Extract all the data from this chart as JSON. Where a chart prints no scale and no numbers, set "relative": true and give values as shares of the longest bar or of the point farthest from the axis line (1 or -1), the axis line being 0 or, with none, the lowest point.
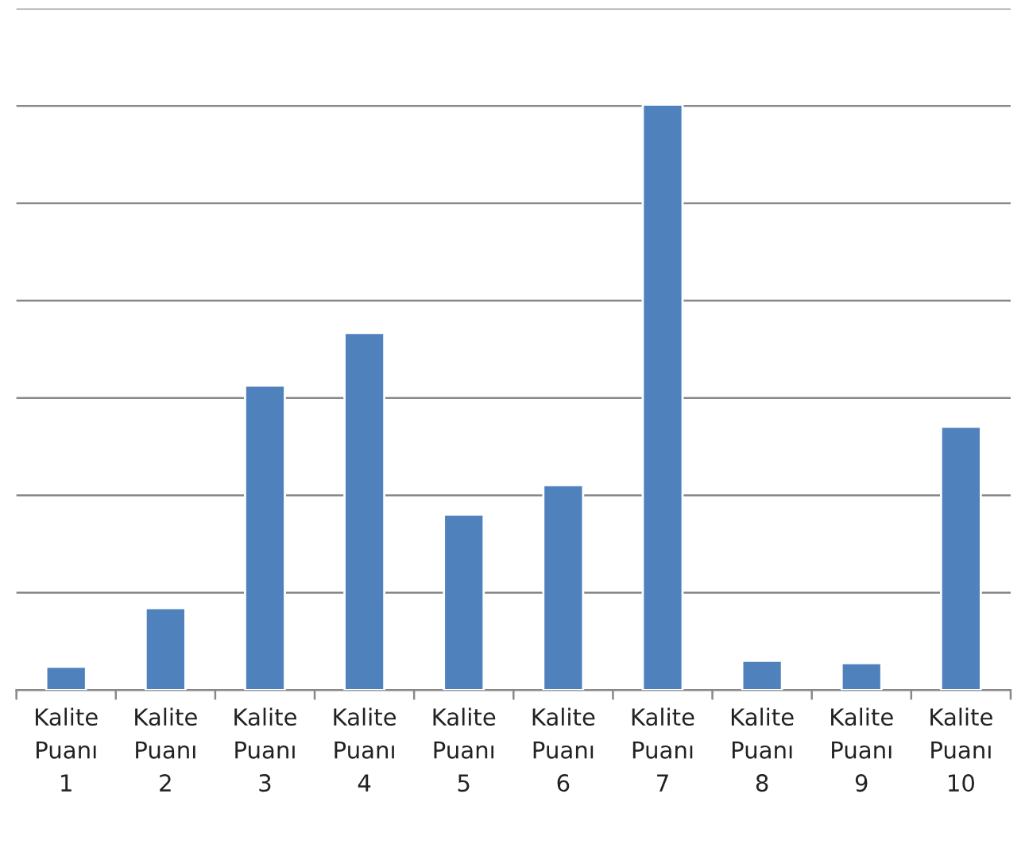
{
  "chart_data": {
    "type": "bar",
    "relative": true,
    "categories": [
      "Kalite\nPuanı\n1",
      "Kalite\nPuanı\n2",
      "Kalite\nPuanı\n3",
      "Kalite\nPuanı\n4",
      "Kalite\nPuanı\n5",
      "Kalite\nPuanı\n6",
      "Kalite\nPuanı\n7",
      "Kalite\nPuanı\n8",
      "Kalite\nPuanı\n9",
      "Kalite\nPuanı\n10"
    ],
    "values": [
      0.04,
      0.14,
      0.52,
      0.61,
      0.3,
      0.35,
      1,
      0.05,
      0.046,
      0.45
    ],
    "color": "#4f81bd",
    "grid": "y",
    "legend": false
  }
}
